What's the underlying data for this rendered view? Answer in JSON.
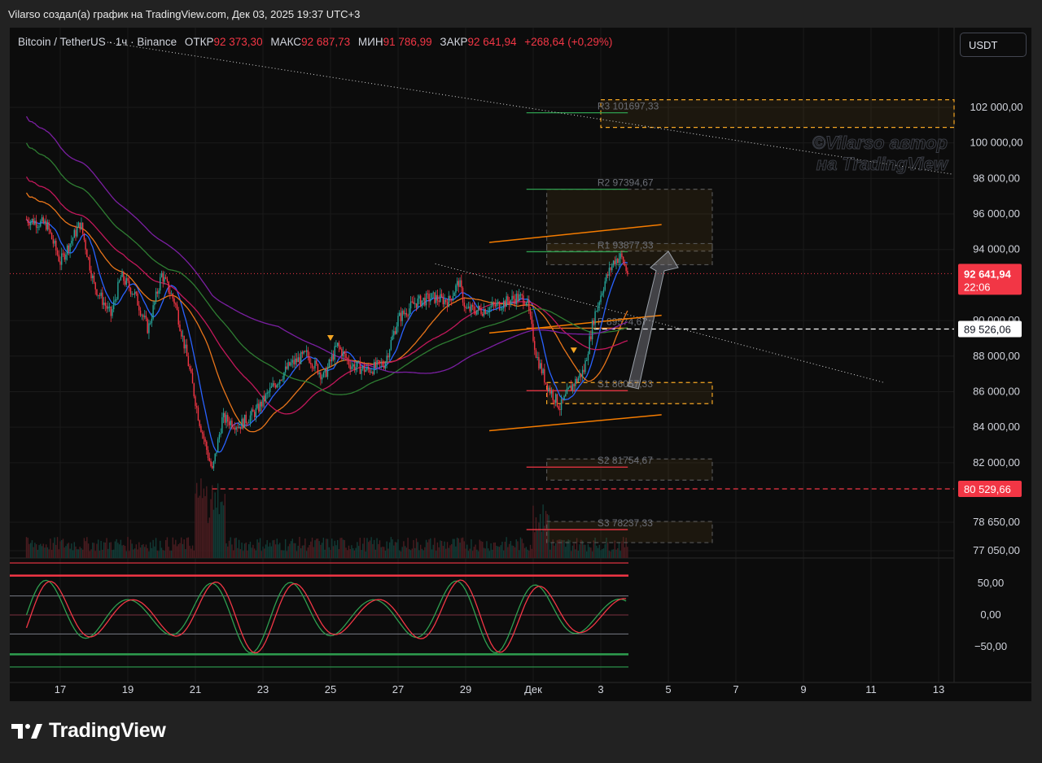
{
  "header": {
    "caption": "Vilarso создал(а) график на TradingView.com, Дек 03, 2025 19:37 UTC+3"
  },
  "symbol_bar": {
    "symbol": "Bitcoin / TetherUS · 1ч · Binance",
    "open_label": "ОТКР",
    "open_value": "92 373,30",
    "high_label": "МАКС",
    "high_value": "92 687,73",
    "low_label": "МИН",
    "low_value": "91 786,99",
    "close_label": "ЗАКР",
    "close_value": "92 641,94",
    "change": "+268,64 (+0,29%)"
  },
  "currency_button": "USDT",
  "watermark": {
    "line1": "©Vilarso автор",
    "line2": "на TradingView"
  },
  "footer": {
    "brand": "TradingView"
  },
  "colors": {
    "background": "#0c0c0c",
    "up": "#26a69a",
    "down": "#f23645",
    "pivot_box": "#f5a623",
    "price_label": "#f23645"
  },
  "icons": [
    "tradingview-logo-icon",
    "down-triangle-marker-icon",
    "up-arrow-icon"
  ],
  "chart_data": [
    {
      "type": "line",
      "title": "",
      "price_axis": {
        "scale_min": 77050,
        "scale_max": 102000,
        "tick_labels": [
          "102 000,00",
          "100 000,00",
          "98 000,00",
          "96 000,00",
          "94 000,00",
          "90 000,00",
          "88 000,00",
          "86 000,00",
          "84 000,00",
          "82 000,00",
          "78 650,00",
          "77 050,00"
        ],
        "tick_values": [
          102000,
          100000,
          98000,
          96000,
          94000,
          90000,
          88000,
          86000,
          84000,
          82000,
          78650,
          77050
        ]
      },
      "time_axis": {
        "tick_labels": [
          "17",
          "19",
          "21",
          "23",
          "25",
          "27",
          "29",
          "Дек",
          "3",
          "5",
          "7",
          "9",
          "11",
          "13"
        ],
        "tick_days": [
          17,
          19,
          21,
          23,
          25,
          27,
          29,
          31,
          33,
          35,
          37,
          39,
          41,
          43
        ]
      },
      "price_labels": [
        {
          "text": "92 641,94",
          "sub": "22:06",
          "value": 92641.94,
          "kind": "current"
        },
        {
          "text": "89 526,06",
          "value": 89526.06,
          "kind": "line"
        },
        {
          "text": "80 529,66",
          "value": 80529.66,
          "kind": "low"
        }
      ],
      "pivots": [
        {
          "label": "R3 101697,33",
          "value": 101697.33
        },
        {
          "label": "R2 97394,67",
          "value": 97394.67
        },
        {
          "label": "R1 93877,33",
          "value": 93877.33
        },
        {
          "label": "P 89574,67",
          "value": 89574.67
        },
        {
          "label": "S1 86057,33",
          "value": 86057.33
        },
        {
          "label": "S2 81754,67",
          "value": 81754.67
        },
        {
          "label": "S3 78237,33",
          "value": 78237.33
        }
      ],
      "series": [
        {
          "name": "BTCUSDT",
          "color": "#26a69a",
          "points": [
            {
              "day": 16.0,
              "price": 95700
            },
            {
              "day": 16.6,
              "price": 95400
            },
            {
              "day": 17.0,
              "price": 93300
            },
            {
              "day": 17.6,
              "price": 95500
            },
            {
              "day": 18.0,
              "price": 92000
            },
            {
              "day": 18.5,
              "price": 90300
            },
            {
              "day": 18.8,
              "price": 92500
            },
            {
              "day": 19.2,
              "price": 91500
            },
            {
              "day": 19.6,
              "price": 89500
            },
            {
              "day": 20.0,
              "price": 92600
            },
            {
              "day": 20.4,
              "price": 91000
            },
            {
              "day": 20.8,
              "price": 87500
            },
            {
              "day": 21.1,
              "price": 84500
            },
            {
              "day": 21.5,
              "price": 81500
            },
            {
              "day": 21.8,
              "price": 84500
            },
            {
              "day": 22.3,
              "price": 84100
            },
            {
              "day": 22.8,
              "price": 84900
            },
            {
              "day": 23.3,
              "price": 86300
            },
            {
              "day": 23.8,
              "price": 87500
            },
            {
              "day": 24.3,
              "price": 88100
            },
            {
              "day": 24.8,
              "price": 86800
            },
            {
              "day": 25.2,
              "price": 88600
            },
            {
              "day": 25.6,
              "price": 87500
            },
            {
              "day": 26.1,
              "price": 87200
            },
            {
              "day": 26.6,
              "price": 87600
            },
            {
              "day": 27.0,
              "price": 90100
            },
            {
              "day": 27.5,
              "price": 91000
            },
            {
              "day": 28.0,
              "price": 91300
            },
            {
              "day": 28.5,
              "price": 91100
            },
            {
              "day": 28.8,
              "price": 92200
            },
            {
              "day": 29.0,
              "price": 90600
            },
            {
              "day": 29.5,
              "price": 90600
            },
            {
              "day": 30.0,
              "price": 90900
            },
            {
              "day": 30.5,
              "price": 91300
            },
            {
              "day": 30.8,
              "price": 91200
            },
            {
              "day": 31.1,
              "price": 88000
            },
            {
              "day": 31.4,
              "price": 86400
            },
            {
              "day": 31.8,
              "price": 85100
            },
            {
              "day": 32.1,
              "price": 86200
            },
            {
              "day": 32.5,
              "price": 87200
            },
            {
              "day": 32.8,
              "price": 90200
            },
            {
              "day": 33.1,
              "price": 92100
            },
            {
              "day": 33.4,
              "price": 93400
            },
            {
              "day": 33.6,
              "price": 93600
            },
            {
              "day": 33.8,
              "price": 92641.94
            }
          ]
        }
      ],
      "oscillator": {
        "type": "line",
        "tick_labels": [
          "50,00",
          "0,00",
          "−50,00"
        ],
        "tick_values": [
          50,
          0,
          -50
        ],
        "scale_min": -80,
        "scale_max": 80
      }
    }
  ]
}
